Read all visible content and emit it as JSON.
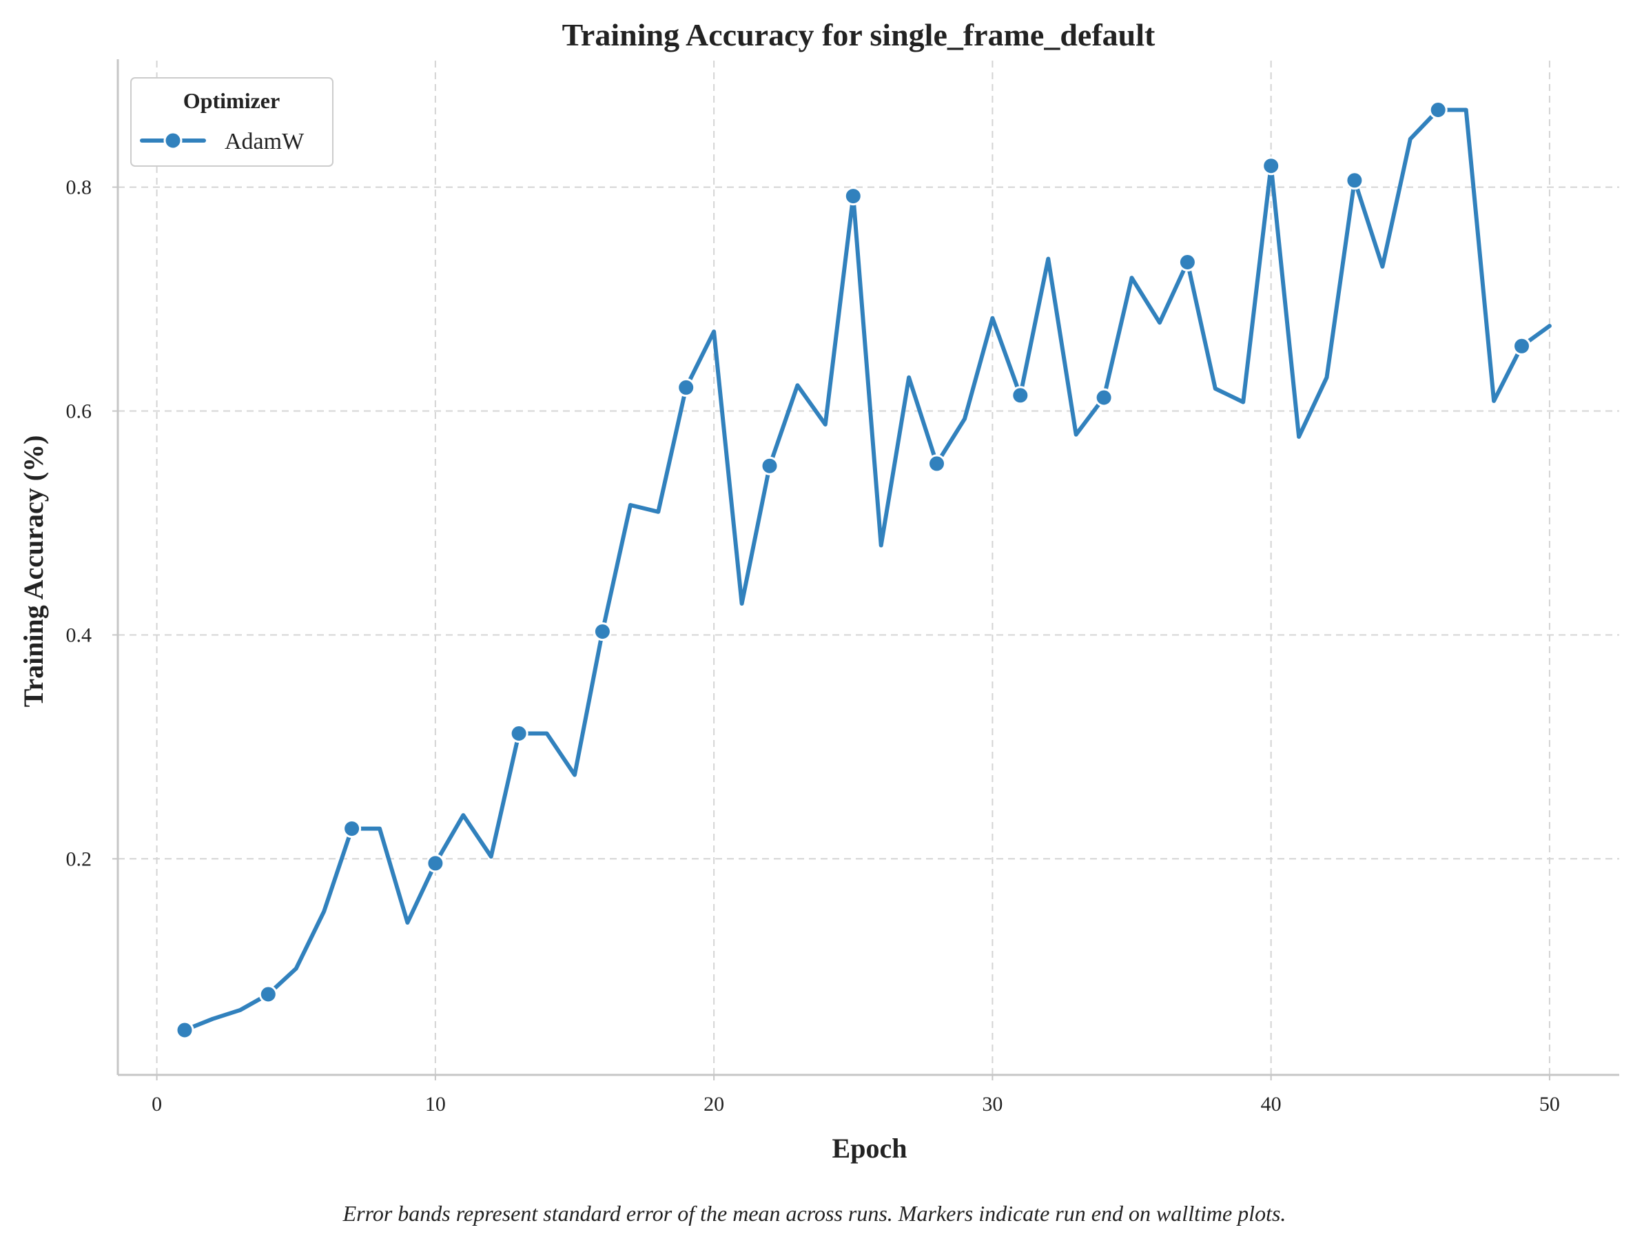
{
  "chart_data": {
    "type": "line",
    "title": "Training Accuracy for single_frame_default",
    "xlabel": "Epoch",
    "ylabel": "Training Accuracy (%)",
    "xlim": [
      -1.4,
      52.5
    ],
    "ylim": [
      0.007,
      0.913
    ],
    "xticks": [
      0,
      10,
      20,
      30,
      40,
      50
    ],
    "xtick_labels": [
      "0",
      "10",
      "20",
      "30",
      "40",
      "50"
    ],
    "yticks": [
      0.2,
      0.4,
      0.6,
      0.8
    ],
    "ytick_labels": [
      "0.2",
      "0.4",
      "0.6",
      "0.8"
    ],
    "grid": true,
    "legend": {
      "title": "Optimizer",
      "placement": "top-left"
    },
    "series": [
      {
        "name": "AdamW",
        "color": "#3181bd",
        "x": [
          1,
          2,
          3,
          4,
          5,
          6,
          7,
          8,
          9,
          10,
          11,
          12,
          13,
          14,
          15,
          16,
          17,
          18,
          19,
          20,
          21,
          22,
          23,
          24,
          25,
          26,
          27,
          28,
          29,
          30,
          31,
          32,
          33,
          34,
          35,
          36,
          37,
          38,
          39,
          40,
          41,
          42,
          43,
          44,
          45,
          46,
          47,
          48,
          49,
          50
        ],
        "y": [
          0.047,
          0.057,
          0.065,
          0.079,
          0.102,
          0.153,
          0.227,
          0.227,
          0.143,
          0.196,
          0.239,
          0.202,
          0.312,
          0.312,
          0.275,
          0.403,
          0.516,
          0.51,
          0.621,
          0.671,
          0.428,
          0.551,
          0.623,
          0.588,
          0.792,
          0.48,
          0.63,
          0.553,
          0.593,
          0.683,
          0.614,
          0.736,
          0.579,
          0.612,
          0.719,
          0.679,
          0.733,
          0.62,
          0.608,
          0.819,
          0.577,
          0.63,
          0.806,
          0.729,
          0.843,
          0.869,
          0.869,
          0.609,
          0.658,
          0.676
        ],
        "marker_x": [
          1,
          4,
          7,
          10,
          13,
          16,
          19,
          22,
          25,
          28,
          31,
          34,
          37,
          40,
          43,
          46,
          49
        ]
      }
    ],
    "caption": "Error bands represent standard error of the mean across runs. Markers indicate run end on walltime plots."
  }
}
